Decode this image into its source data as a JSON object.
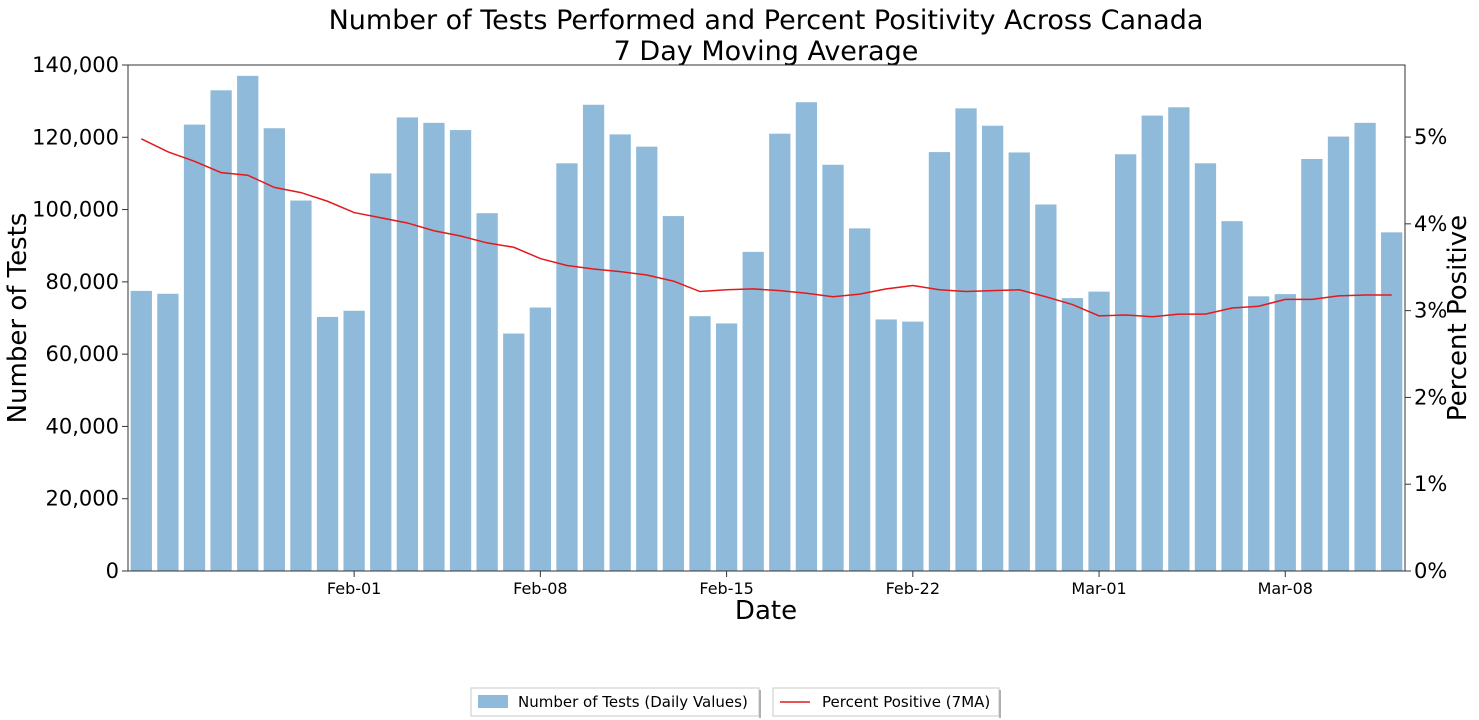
{
  "chart_data": {
    "type": "bar",
    "title": "Number of Tests Performed and Percent Positivity Across Canada",
    "subtitle": "7 Day Moving Average",
    "xlabel": "Date",
    "ylabel": "Number of Tests",
    "ylabel_right": "Percent Positive",
    "ylim": [
      0,
      140000
    ],
    "ylim_right": [
      0,
      5.83
    ],
    "yticks": [
      0,
      20000,
      40000,
      60000,
      80000,
      100000,
      120000,
      140000
    ],
    "ytick_labels": [
      "0",
      "20,000",
      "40,000",
      "60,000",
      "80,000",
      "100,000",
      "120,000",
      "140,000"
    ],
    "yticks_right": [
      0,
      1,
      2,
      3,
      4,
      5
    ],
    "ytick_labels_right": [
      "0%",
      "1%",
      "2%",
      "3%",
      "4%",
      "5%"
    ],
    "xtick_labels": [
      {
        "index": 8,
        "label": "Feb-01"
      },
      {
        "index": 15,
        "label": "Feb-08"
      },
      {
        "index": 22,
        "label": "Feb-15"
      },
      {
        "index": 29,
        "label": "Feb-22"
      },
      {
        "index": 36,
        "label": "Mar-01"
      },
      {
        "index": 43,
        "label": "Mar-08"
      }
    ],
    "legend_position": "bottom-center",
    "grid": false,
    "series": [
      {
        "name": "Number of Tests (Daily Values)",
        "type": "bar",
        "color": "#8fbad9",
        "values": [
          77500,
          76700,
          123500,
          133000,
          137000,
          122500,
          102500,
          70300,
          72000,
          110000,
          125500,
          124000,
          122000,
          99000,
          65700,
          72900,
          112800,
          129000,
          120800,
          117400,
          98200,
          70500,
          68500,
          88300,
          121000,
          129700,
          112400,
          94800,
          69600,
          69000,
          115900,
          128000,
          123200,
          115800,
          101400,
          75500,
          77300,
          115300,
          126000,
          128300,
          112800,
          96800,
          76000,
          76600,
          114000,
          120200,
          124000,
          93700
        ]
      },
      {
        "name": "Percent Positive (7MA)",
        "type": "line",
        "color": "#e31a1c",
        "axis": "right",
        "values": [
          4.98,
          4.83,
          4.72,
          4.59,
          4.56,
          4.42,
          4.36,
          4.26,
          4.13,
          4.07,
          4.01,
          3.92,
          3.86,
          3.78,
          3.73,
          3.6,
          3.52,
          3.48,
          3.45,
          3.41,
          3.34,
          3.22,
          3.24,
          3.25,
          3.23,
          3.2,
          3.16,
          3.19,
          3.25,
          3.29,
          3.24,
          3.22,
          3.23,
          3.24,
          3.16,
          3.07,
          2.94,
          2.95,
          2.93,
          2.96,
          2.96,
          3.03,
          3.05,
          3.13,
          3.13,
          3.17,
          3.18,
          3.18
        ]
      }
    ]
  }
}
